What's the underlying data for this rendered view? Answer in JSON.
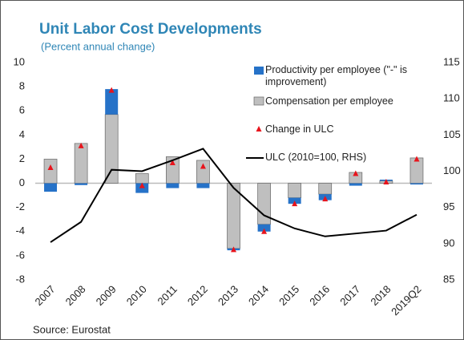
{
  "chart_data": {
    "type": "bar",
    "title": "Unit Labor Cost Developments",
    "subtitle": "(Percent annual change)",
    "source": "Source: Eurostat",
    "categories": [
      "2007",
      "2008",
      "2009",
      "2010",
      "2011",
      "2012",
      "2013",
      "2014",
      "2015",
      "2016",
      "2017",
      "2018",
      "2019Q2"
    ],
    "series": [
      {
        "name": "Productivity per employee (\"-\" is improvement)",
        "style": "bar",
        "color": "#2672c8",
        "values": [
          -0.7,
          -0.15,
          2.1,
          -0.8,
          -0.4,
          -0.4,
          -0.15,
          -0.6,
          -0.5,
          -0.5,
          -0.2,
          0.1,
          -0.1
        ]
      },
      {
        "name": "Compensation per employee",
        "style": "bar",
        "color": "#bfbfbf",
        "values": [
          2.0,
          3.3,
          5.7,
          0.8,
          2.2,
          1.9,
          -5.4,
          -3.4,
          -1.2,
          -0.9,
          0.9,
          0.2,
          2.1
        ]
      },
      {
        "name": "Change in ULC",
        "style": "marker",
        "color": "#e8141c",
        "values": [
          1.3,
          3.1,
          7.7,
          -0.2,
          1.7,
          1.4,
          -5.5,
          -4.0,
          -1.7,
          -1.3,
          0.8,
          0.1,
          2.0
        ]
      },
      {
        "name": "ULC (2010=100, RHS)",
        "style": "line",
        "color": "#000000",
        "axis": "y2",
        "values": [
          90.2,
          93.0,
          100.2,
          100.0,
          101.5,
          103.1,
          97.7,
          93.9,
          92.1,
          91.0,
          91.4,
          91.8,
          94.0
        ]
      }
    ],
    "ylim": [
      -8,
      10
    ],
    "yticks": [
      -8,
      -6,
      -4,
      -2,
      0,
      2,
      4,
      6,
      8,
      10
    ],
    "y2lim": [
      85,
      115
    ],
    "y2ticks": [
      85,
      90,
      95,
      100,
      105,
      110,
      115
    ]
  }
}
